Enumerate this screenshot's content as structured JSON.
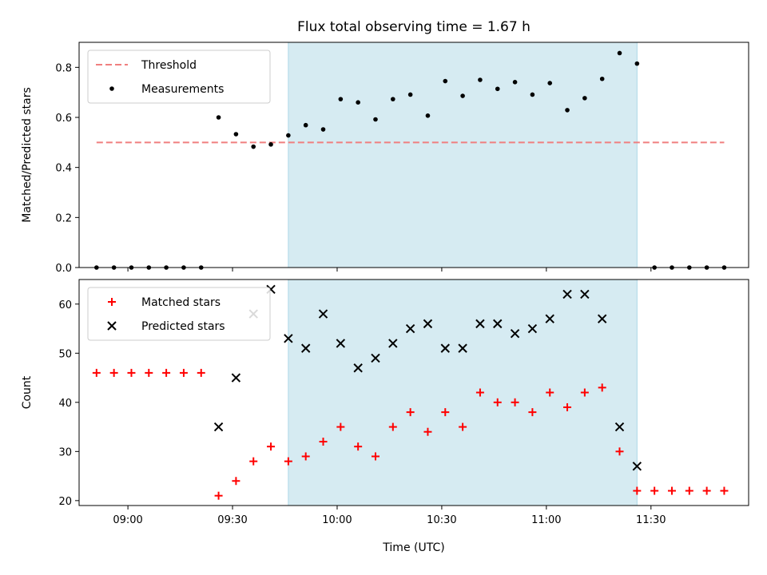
{
  "chart_data": {
    "type": "scatter",
    "title": "Flux total observing time = 1.67 h",
    "x_unit": "time (UTC)",
    "xlabel": "Time (UTC)",
    "xlim": [
      "08:46",
      "11:58"
    ],
    "x_ticks": [
      "09:00",
      "09:30",
      "10:00",
      "10:30",
      "11:00",
      "11:30"
    ],
    "observing_window": {
      "start": "09:46",
      "end": "11:26",
      "color": "#add8e6"
    },
    "x": [
      "08:51",
      "08:56",
      "09:01",
      "09:06",
      "09:11",
      "09:16",
      "09:21",
      "09:26",
      "09:31",
      "09:36",
      "09:41",
      "09:46",
      "09:51",
      "09:56",
      "10:01",
      "10:06",
      "10:11",
      "10:16",
      "10:21",
      "10:26",
      "10:31",
      "10:36",
      "10:41",
      "10:46",
      "10:51",
      "10:56",
      "11:01",
      "11:06",
      "11:11",
      "11:16",
      "11:21",
      "11:26",
      "11:31",
      "11:36",
      "11:41",
      "11:46",
      "11:51"
    ],
    "panels": [
      {
        "id": "ratio",
        "ylabel": "Matched/Predicted stars",
        "ylim": [
          0,
          0.9
        ],
        "y_ticks": [
          "0.0",
          "0.2",
          "0.4",
          "0.6",
          "0.8"
        ],
        "legend": {
          "position": "top-left",
          "entries": [
            "Threshold",
            "Measurements"
          ]
        },
        "threshold": {
          "name": "Threshold",
          "value": 0.5,
          "x_range": [
            "08:51",
            "11:51"
          ],
          "color": "#f07f7f"
        },
        "series": [
          {
            "name": "Measurements",
            "marker": "dot",
            "color": "#000000",
            "values": [
              0,
              0,
              0,
              0,
              0,
              0,
              0,
              0.6,
              0.533,
              0.483,
              0.492,
              0.528,
              0.569,
              0.552,
              0.673,
              0.66,
              0.592,
              0.673,
              0.691,
              0.607,
              0.745,
              0.686,
              0.75,
              0.714,
              0.741,
              0.691,
              0.737,
              0.629,
              0.677,
              0.754,
              0.857,
              0.815,
              0,
              0,
              0,
              0,
              0
            ]
          }
        ]
      },
      {
        "id": "counts",
        "ylabel": "Count",
        "ylim": [
          19,
          65
        ],
        "y_ticks": [
          "20",
          "30",
          "40",
          "50",
          "60"
        ],
        "legend": {
          "position": "top-left",
          "entries": [
            "Matched stars",
            "Predicted stars"
          ]
        },
        "series": [
          {
            "name": "Matched stars",
            "marker": "plus",
            "color": "#ff0000",
            "values": [
              46,
              46,
              46,
              46,
              46,
              46,
              46,
              21,
              24,
              28,
              31,
              28,
              29,
              32,
              35,
              31,
              29,
              35,
              38,
              34,
              38,
              35,
              42,
              40,
              40,
              38,
              42,
              39,
              42,
              43,
              30,
              22,
              22,
              22,
              22,
              22,
              22
            ]
          },
          {
            "name": "Predicted stars",
            "marker": "x",
            "color": "#000000",
            "values": [
              null,
              null,
              null,
              null,
              null,
              null,
              null,
              35,
              45,
              58,
              63,
              53,
              51,
              58,
              52,
              47,
              49,
              52,
              55,
              56,
              51,
              51,
              56,
              56,
              54,
              55,
              57,
              62,
              62,
              57,
              35,
              27,
              null,
              null,
              null,
              null,
              null
            ]
          }
        ]
      }
    ]
  }
}
